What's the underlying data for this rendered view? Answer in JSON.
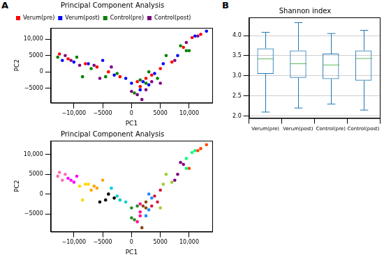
{
  "chart_data": [
    {
      "panel": "A",
      "type": "scatter",
      "title": "Principal Component Analysis",
      "x_label": "PC1",
      "y_label": "PC2",
      "xlim": [
        -14000,
        14000
      ],
      "ylim": [
        -9500,
        13500
      ],
      "xticks": [
        {
          "value": -10000,
          "label": "−10,000"
        },
        {
          "value": -5000,
          "label": "−5000"
        },
        0,
        5000,
        {
          "value": 10000,
          "label": "10,000"
        }
      ],
      "yticks": [
        {
          "value": -5000,
          "label": "−5000"
        },
        0,
        5000,
        {
          "value": 10000,
          "label": "10,000"
        }
      ],
      "grid": false,
      "legend": "upper left",
      "series": [
        {
          "name": "Verum(pre)",
          "color": "#ff0000",
          "x": [
            -12500,
            -11000,
            -8000,
            -6000,
            -4000,
            -2000,
            1000,
            1500,
            2500,
            3500,
            5000,
            7000,
            9000,
            10500,
            12000
          ],
          "values": [
            5500,
            4000,
            2500,
            1500,
            0,
            -1500,
            -3000,
            -4500,
            -2000,
            -1000,
            1000,
            3000,
            7500,
            10500,
            11500
          ]
        },
        {
          "name": "Verum(post)",
          "color": "#0000ff",
          "x": [
            -12000,
            -10000,
            -7500,
            -5000,
            -3000,
            -1000,
            0,
            1500,
            2000,
            3000,
            4000,
            5500,
            8000,
            11000,
            13000
          ],
          "values": [
            3500,
            3000,
            2500,
            3500,
            -1000,
            -2000,
            -3500,
            -5500,
            -3000,
            -4000,
            -500,
            2500,
            5000,
            11000,
            12500
          ]
        },
        {
          "name": "Control(pre)",
          "color": "#008000",
          "x": [
            -12800,
            -9500,
            -8500,
            -7000,
            -4500,
            -2500,
            500,
            1500,
            2500,
            3000,
            4500,
            6000,
            8500,
            9500,
            10000
          ],
          "values": [
            4500,
            4500,
            -1500,
            1000,
            -1500,
            -500,
            -6500,
            -2500,
            -3500,
            0,
            -2000,
            5000,
            8000,
            6500,
            6500
          ]
        },
        {
          "name": "Control(post)",
          "color": "#800080",
          "x": [
            -11500,
            -10500,
            -9000,
            -6500,
            -5500,
            -3500,
            0,
            1000,
            1800,
            2500,
            3500,
            5000,
            7500,
            9500,
            11500
          ],
          "values": [
            5000,
            3500,
            2000,
            2000,
            -2000,
            1500,
            -6000,
            -7000,
            -8500,
            -5500,
            -3000,
            -3500,
            3500,
            9000,
            11000
          ]
        }
      ]
    },
    {
      "type": "scatter",
      "title": "Principal Component Analysis",
      "x_label": "PC1",
      "y_label": "PC2",
      "xlim": [
        -14000,
        14000
      ],
      "ylim": [
        -9500,
        13500
      ],
      "xticks": [
        {
          "value": -10000,
          "label": "−10,000"
        },
        {
          "value": -5000,
          "label": "−5000"
        },
        0,
        5000,
        {
          "value": 10000,
          "label": "10,000"
        }
      ],
      "yticks": [
        {
          "value": -5000,
          "label": "−5000"
        },
        0,
        5000,
        {
          "value": 10000,
          "label": "10,000"
        }
      ],
      "grid": false,
      "x": [
        -12500,
        -11000,
        -8000,
        -6000,
        -4000,
        -2000,
        1000,
        1500,
        2500,
        3500,
        5000,
        7000,
        9000,
        10500,
        12000,
        -12000,
        -10000,
        -7500,
        -5000,
        -3000,
        -1000,
        0,
        1500,
        2000,
        3000,
        4000,
        5500,
        8000,
        11000,
        13000,
        -12800,
        -9500,
        -8500,
        -7000,
        -4500,
        -2500,
        500,
        1500,
        2500,
        3000,
        4500,
        6000,
        8500,
        9500,
        10000,
        -11500,
        -10500,
        -9000,
        -6500,
        -5500,
        -3500,
        0,
        1000,
        1800,
        2500,
        3500,
        5000,
        7500,
        9500,
        11500
      ],
      "values": [
        5500,
        4000,
        2500,
        1500,
        0,
        -1500,
        -3000,
        -4500,
        -2000,
        -1000,
        1000,
        3000,
        7500,
        10500,
        11500,
        3500,
        3000,
        2500,
        3500,
        -1000,
        -2000,
        -3500,
        -5500,
        -3000,
        -4000,
        -500,
        2500,
        5000,
        11000,
        12500,
        4500,
        4500,
        -1500,
        1000,
        -1500,
        -500,
        -6500,
        -2500,
        -3500,
        0,
        -2000,
        5000,
        8000,
        6500,
        6500,
        5000,
        3500,
        2000,
        2000,
        -2000,
        1500,
        -6000,
        -7000,
        -8500,
        -5500,
        -3000,
        -3500,
        3500,
        9000,
        11000
      ],
      "colors": [
        "#ff69b4",
        "#ff00ff",
        "#ffd700",
        "#ffa500",
        "#000000",
        "#00ced1",
        "#228b22",
        "#ff1493",
        "#8b4513",
        "#1e90ff",
        "#dc143c",
        "#9acd32",
        "#800080",
        "#00ff7f",
        "#ff4500",
        "#ff69b4",
        "#ff00ff",
        "#ffd700",
        "#ffa500",
        "#000000",
        "#00ced1",
        "#228b22",
        "#ff1493",
        "#8b4513",
        "#1e90ff",
        "#dc143c",
        "#9acd32",
        "#800080",
        "#00ff7f",
        "#ff4500",
        "#ff69b4",
        "#ff00ff",
        "#ffd700",
        "#ffa500",
        "#000000",
        "#00ced1",
        "#228b22",
        "#ff1493",
        "#8b4513",
        "#1e90ff",
        "#dc143c",
        "#9acd32",
        "#800080",
        "#00ff7f",
        "#ff4500",
        "#ff69b4",
        "#ff00ff",
        "#ffd700",
        "#ffa500",
        "#000000",
        "#00ced1",
        "#228b22",
        "#ff1493",
        "#8b4513",
        "#1e90ff",
        "#dc143c",
        "#9acd32",
        "#800080",
        "#00ff7f",
        "#ff4500"
      ]
    },
    {
      "panel": "B",
      "type": "box",
      "title": "Shannon index",
      "categories": [
        "Verum(pre)",
        "Verum(post)",
        "Control(pre)",
        "Control(post)"
      ],
      "ylim": [
        1.95,
        4.45
      ],
      "yticks": [
        {
          "value": 2,
          "label": "2.0"
        },
        2.5,
        {
          "value": 3,
          "label": "3.0"
        },
        3.5,
        {
          "value": 4,
          "label": "4.0"
        }
      ],
      "grid": true,
      "series": [
        {
          "color": "#1f77b4",
          "min": [
            2.1,
            2.2,
            2.3,
            2.15
          ],
          "q1": [
            3.05,
            2.95,
            2.92,
            2.88
          ],
          "median": [
            3.42,
            3.3,
            3.27,
            3.43
          ],
          "q3": [
            3.68,
            3.63,
            3.55,
            3.63
          ],
          "max": [
            4.08,
            4.32,
            4.05,
            4.13
          ]
        }
      ]
    }
  ]
}
